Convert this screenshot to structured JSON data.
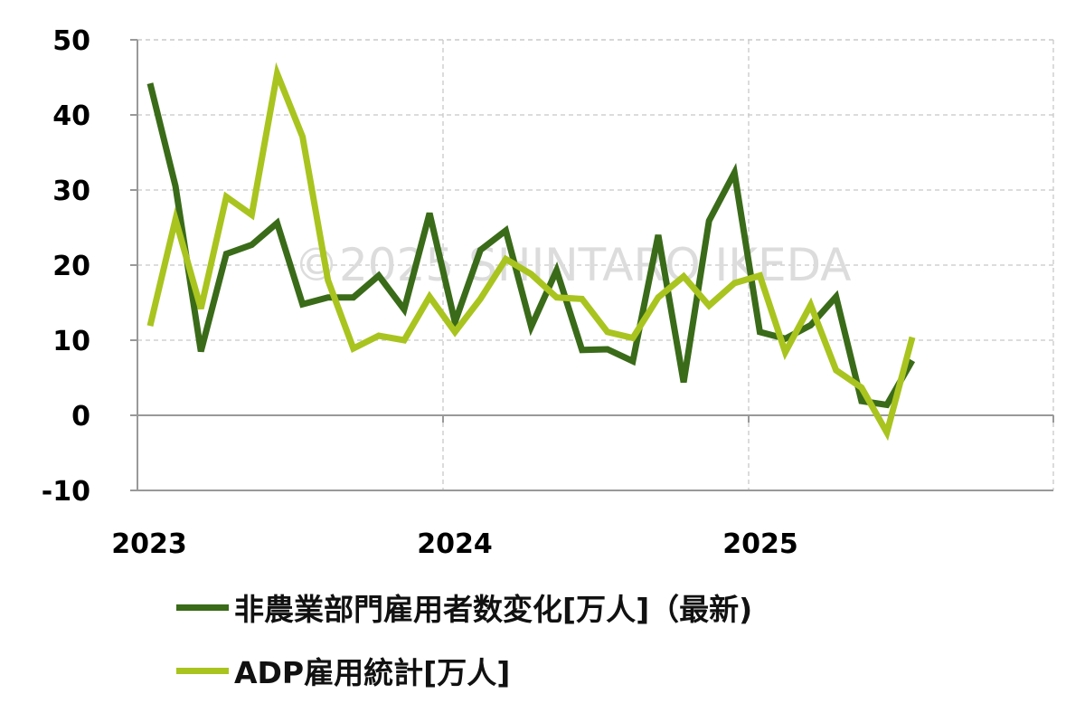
{
  "watermark": "©2025 SHINTARO IKEDA",
  "colors": {
    "nonfarm": "#3a6b19",
    "adp": "#a9c41f",
    "grid": "#c8c8c8",
    "axis": "#999999"
  },
  "chart_data": {
    "type": "line",
    "x_ticks": [
      "2023",
      "2024",
      "2025"
    ],
    "y_ticks": [
      "50",
      "40",
      "30",
      "20",
      "10",
      "0",
      "-10"
    ],
    "ylim": [
      -10,
      50
    ],
    "x": [
      "2023-01",
      "2023-02",
      "2023-03",
      "2023-04",
      "2023-05",
      "2023-06",
      "2023-07",
      "2023-08",
      "2023-09",
      "2023-10",
      "2023-11",
      "2023-12",
      "2024-01",
      "2024-02",
      "2024-03",
      "2024-04",
      "2024-05",
      "2024-06",
      "2024-07",
      "2024-08",
      "2024-09",
      "2024-10",
      "2024-11",
      "2024-12",
      "2025-01",
      "2025-02",
      "2025-03",
      "2025-04",
      "2025-05",
      "2025-06",
      "2025-07"
    ],
    "series": [
      {
        "name": "非農業部門雇用者数変化[万人]（最新)",
        "values": [
          44.2,
          30.5,
          8.5,
          21.5,
          22.7,
          25.6,
          14.8,
          15.7,
          15.7,
          18.6,
          14.1,
          26.9,
          12.4,
          22.0,
          24.6,
          11.8,
          19.3,
          8.7,
          8.8,
          7.2,
          24.0,
          4.4,
          25.9,
          32.3,
          11.1,
          10.2,
          12.0,
          15.8,
          1.9,
          1.4,
          7.3
        ]
      },
      {
        "name": "ADP雇用統計[万人]",
        "values": [
          11.9,
          26.1,
          14.2,
          29.1,
          26.7,
          45.5,
          37.1,
          18.0,
          8.9,
          10.6,
          10.0,
          15.8,
          11.1,
          15.5,
          20.8,
          18.8,
          15.7,
          15.5,
          11.1,
          10.3,
          15.7,
          18.5,
          14.6,
          17.6,
          18.6,
          8.4,
          14.7,
          6.0,
          3.7,
          -2.3,
          10.4
        ]
      }
    ]
  }
}
